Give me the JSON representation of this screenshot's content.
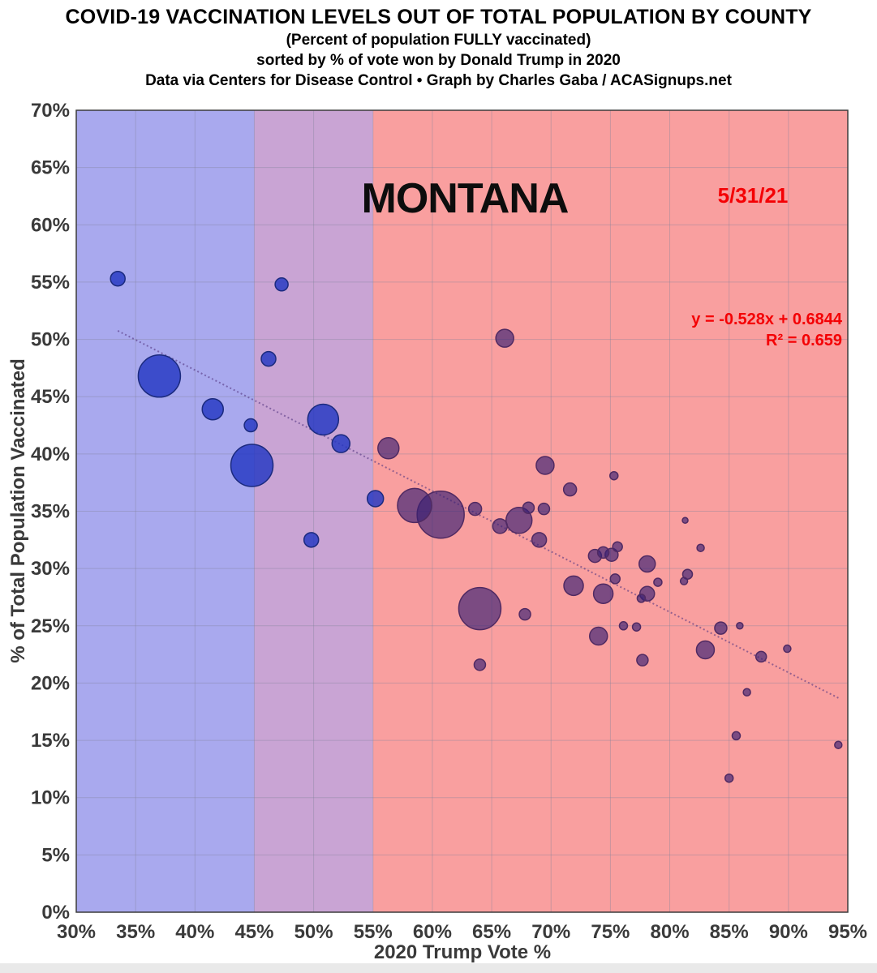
{
  "page": {
    "background": "#ffffff"
  },
  "header": {
    "title": "COVID-19 VACCINATION LEVELS OUT OF TOTAL POPULATION BY COUNTY",
    "subtitle": "(Percent of population FULLY vaccinated)",
    "sort_note": "sorted by % of vote won by Donald Trump in 2020",
    "credit": "Data via Centers for Disease Control • Graph by Charles Gaba / ACASignups.net"
  },
  "colors": {
    "accent_red_text": "#f40004",
    "tick_text": "#3a3a3a",
    "grid_line": "#83839b",
    "plot_border": "#3c3c3c",
    "zone_blue": "#a9a9ee",
    "zone_purple": "#c9a4d4",
    "zone_red": "#f99f9f",
    "trend_line": "rgba(85,55,130,0.6)",
    "bubble_blue_fill": "rgba(35,55,195,0.82)",
    "bubble_blue_stroke": "#1b2a7e",
    "bubble_red_fill": "rgba(55,30,115,0.65)",
    "bubble_red_stroke": "#502a62"
  },
  "chart_data": {
    "type": "scatter",
    "title": "MONTANA",
    "date_label": "5/31/21",
    "equation_line1": "y = -0.528x + 0.6844",
    "equation_line2": "R² = 0.659",
    "xlabel": "2020 Trump Vote %",
    "ylabel": "% of Total Population Vaccinated",
    "xlim": [
      30,
      95
    ],
    "ylim": [
      0,
      70
    ],
    "x_ticks": [
      30,
      35,
      40,
      45,
      50,
      55,
      60,
      65,
      70,
      75,
      80,
      85,
      90,
      95
    ],
    "y_ticks": [
      0,
      5,
      10,
      15,
      20,
      25,
      30,
      35,
      40,
      45,
      50,
      55,
      60,
      65,
      70
    ],
    "tick_suffix": "%",
    "grid": true,
    "legend": "none",
    "units_note": "x = 2020 Trump vote share %, y = fully vaccinated %, r = bubble radius in px (county population size)",
    "zones": [
      {
        "label": "blue-zone",
        "x_from": 30,
        "x_to": 45,
        "color_key": "zone_blue"
      },
      {
        "label": "purple-zone",
        "x_from": 45,
        "x_to": 55,
        "color_key": "zone_purple"
      },
      {
        "label": "red-zone",
        "x_from": 55,
        "x_to": 95,
        "color_key": "zone_red"
      }
    ],
    "trendline": {
      "slope_per_pct": -0.528,
      "intercept_pct": 68.44,
      "x_start": 33.5,
      "x_end": 94.3
    },
    "series": [
      {
        "name": "counties-lower-trump-share",
        "fill_key": "bubble_blue_fill",
        "stroke_key": "bubble_blue_stroke",
        "points": [
          {
            "x": 33.5,
            "y": 55.3,
            "r": 9
          },
          {
            "x": 37.0,
            "y": 46.8,
            "r": 26
          },
          {
            "x": 41.5,
            "y": 43.9,
            "r": 13
          },
          {
            "x": 44.7,
            "y": 42.5,
            "r": 8
          },
          {
            "x": 44.8,
            "y": 39.0,
            "r": 26
          },
          {
            "x": 46.2,
            "y": 48.3,
            "r": 9
          },
          {
            "x": 47.3,
            "y": 54.8,
            "r": 8
          },
          {
            "x": 49.8,
            "y": 32.5,
            "r": 9
          },
          {
            "x": 50.8,
            "y": 43.0,
            "r": 19
          },
          {
            "x": 52.3,
            "y": 40.9,
            "r": 11
          },
          {
            "x": 55.2,
            "y": 36.1,
            "r": 10
          }
        ]
      },
      {
        "name": "counties-higher-trump-share",
        "fill_key": "bubble_red_fill",
        "stroke_key": "bubble_red_stroke",
        "points": [
          {
            "x": 56.3,
            "y": 40.5,
            "r": 13
          },
          {
            "x": 58.5,
            "y": 35.5,
            "r": 21
          },
          {
            "x": 60.7,
            "y": 34.7,
            "r": 29
          },
          {
            "x": 63.6,
            "y": 35.2,
            "r": 8
          },
          {
            "x": 64.0,
            "y": 26.5,
            "r": 26
          },
          {
            "x": 64.0,
            "y": 21.6,
            "r": 7
          },
          {
            "x": 65.7,
            "y": 33.7,
            "r": 9
          },
          {
            "x": 66.1,
            "y": 50.1,
            "r": 11
          },
          {
            "x": 67.3,
            "y": 34.2,
            "r": 16
          },
          {
            "x": 67.8,
            "y": 26.0,
            "r": 7
          },
          {
            "x": 68.1,
            "y": 35.3,
            "r": 7
          },
          {
            "x": 69.0,
            "y": 32.5,
            "r": 9
          },
          {
            "x": 69.4,
            "y": 35.2,
            "r": 7
          },
          {
            "x": 69.5,
            "y": 39.0,
            "r": 11
          },
          {
            "x": 71.6,
            "y": 36.9,
            "r": 8
          },
          {
            "x": 71.9,
            "y": 28.5,
            "r": 12
          },
          {
            "x": 73.7,
            "y": 31.1,
            "r": 8
          },
          {
            "x": 74.4,
            "y": 31.4,
            "r": 7
          },
          {
            "x": 75.1,
            "y": 31.2,
            "r": 8
          },
          {
            "x": 75.6,
            "y": 31.9,
            "r": 6
          },
          {
            "x": 74.4,
            "y": 27.8,
            "r": 12
          },
          {
            "x": 74.0,
            "y": 24.1,
            "r": 11
          },
          {
            "x": 75.3,
            "y": 38.1,
            "r": 5
          },
          {
            "x": 75.4,
            "y": 29.1,
            "r": 6
          },
          {
            "x": 76.1,
            "y": 25.0,
            "r": 5
          },
          {
            "x": 77.2,
            "y": 24.9,
            "r": 5
          },
          {
            "x": 77.6,
            "y": 27.4,
            "r": 5
          },
          {
            "x": 77.7,
            "y": 22.0,
            "r": 7
          },
          {
            "x": 78.1,
            "y": 30.4,
            "r": 10
          },
          {
            "x": 78.1,
            "y": 27.8,
            "r": 9
          },
          {
            "x": 79.0,
            "y": 28.8,
            "r": 5
          },
          {
            "x": 81.3,
            "y": 34.2,
            "r": 3.5
          },
          {
            "x": 81.5,
            "y": 29.5,
            "r": 6
          },
          {
            "x": 81.2,
            "y": 28.9,
            "r": 4.5
          },
          {
            "x": 82.6,
            "y": 31.8,
            "r": 4.5
          },
          {
            "x": 83.0,
            "y": 22.9,
            "r": 11
          },
          {
            "x": 84.3,
            "y": 24.8,
            "r": 7.5
          },
          {
            "x": 85.9,
            "y": 25.0,
            "r": 4
          },
          {
            "x": 85.0,
            "y": 11.7,
            "r": 5
          },
          {
            "x": 85.6,
            "y": 15.4,
            "r": 5
          },
          {
            "x": 86.5,
            "y": 19.2,
            "r": 4.5
          },
          {
            "x": 87.7,
            "y": 22.3,
            "r": 6.5
          },
          {
            "x": 89.9,
            "y": 23.0,
            "r": 4.5
          },
          {
            "x": 94.2,
            "y": 14.6,
            "r": 4.5
          }
        ]
      }
    ]
  }
}
